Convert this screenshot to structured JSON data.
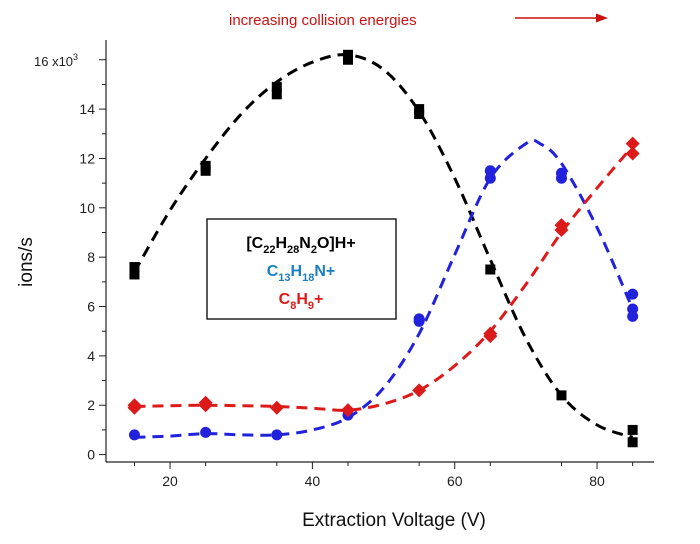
{
  "chart_data": {
    "type": "scatter",
    "title": "",
    "xlabel": "Extraction Voltage (V)",
    "ylabel": "ions/s",
    "xlim": [
      11,
      88
    ],
    "ylim": [
      -0.3,
      16.8
    ],
    "y_multiplier_label": "x10",
    "y_multiplier_exp": "3",
    "x_ticks": [
      20,
      40,
      60,
      80
    ],
    "y_ticks": [
      0,
      2,
      4,
      6,
      8,
      10,
      12,
      14,
      16
    ],
    "y_tick_labels": [
      "0",
      "2",
      "4",
      "6",
      "8",
      "10",
      "12",
      "14",
      "16"
    ],
    "grid": false,
    "annotation": {
      "text": "increasing collision energies",
      "color": "#cc1111"
    },
    "legend": {
      "placement": "center-left",
      "entries": [
        {
          "parts": [
            [
              "[C",
              ""
            ],
            [
              "22",
              "sub"
            ],
            [
              "H",
              ""
            ],
            [
              "28",
              "sub"
            ],
            [
              "N",
              ""
            ],
            [
              "2",
              "sub"
            ],
            [
              "O]H+",
              ""
            ]
          ],
          "color": "#000000"
        },
        {
          "parts": [
            [
              "C",
              ""
            ],
            [
              "13",
              "sub"
            ],
            [
              "H",
              ""
            ],
            [
              "18",
              "sub"
            ],
            [
              "N+",
              ""
            ]
          ],
          "color": "#1a7fc1"
        },
        {
          "parts": [
            [
              "C",
              ""
            ],
            [
              "8",
              "sub"
            ],
            [
              "H",
              ""
            ],
            [
              "9",
              "sub"
            ],
            [
              "+",
              ""
            ]
          ],
          "color": "#dd1a1a"
        }
      ]
    },
    "series": [
      {
        "marker": "square",
        "color": "#000000",
        "points": [
          [
            15,
            7.3
          ],
          [
            15,
            7.6
          ],
          [
            25,
            11.5
          ],
          [
            25,
            11.7
          ],
          [
            35,
            14.6
          ],
          [
            35,
            14.9
          ],
          [
            45,
            16.0
          ],
          [
            45,
            16.2
          ],
          [
            55,
            13.8
          ],
          [
            55,
            14.0
          ],
          [
            65,
            7.5
          ],
          [
            75,
            2.4
          ],
          [
            85,
            1.0
          ],
          [
            85,
            0.5
          ]
        ],
        "fit": [
          [
            15,
            7.4
          ],
          [
            20,
            9.9
          ],
          [
            25,
            12.0
          ],
          [
            30,
            13.8
          ],
          [
            35,
            15.1
          ],
          [
            40,
            15.9
          ],
          [
            45,
            16.2
          ],
          [
            50,
            15.6
          ],
          [
            55,
            13.9
          ],
          [
            60,
            11.2
          ],
          [
            65,
            7.9
          ],
          [
            70,
            4.7
          ],
          [
            75,
            2.4
          ],
          [
            80,
            1.2
          ],
          [
            85,
            0.7
          ]
        ]
      },
      {
        "marker": "circle",
        "color": "#2222dd",
        "points": [
          [
            15,
            0.8
          ],
          [
            25,
            0.9
          ],
          [
            35,
            0.8
          ],
          [
            45,
            1.6
          ],
          [
            55,
            5.5
          ],
          [
            55,
            5.4
          ],
          [
            65,
            11.2
          ],
          [
            65,
            11.5
          ],
          [
            75,
            11.2
          ],
          [
            75,
            11.4
          ],
          [
            85,
            6.5
          ],
          [
            85,
            5.6
          ],
          [
            85,
            5.9
          ]
        ],
        "fit": [
          [
            15,
            0.7
          ],
          [
            20,
            0.75
          ],
          [
            25,
            0.85
          ],
          [
            30,
            0.8
          ],
          [
            35,
            0.8
          ],
          [
            40,
            1.0
          ],
          [
            45,
            1.5
          ],
          [
            50,
            2.7
          ],
          [
            55,
            4.9
          ],
          [
            60,
            8.1
          ],
          [
            65,
            11.2
          ],
          [
            70,
            12.6
          ],
          [
            72,
            12.6
          ],
          [
            75,
            11.8
          ],
          [
            80,
            9.2
          ],
          [
            85,
            5.9
          ]
        ]
      },
      {
        "marker": "diamond",
        "color": "#dd1a1a",
        "points": [
          [
            15,
            1.9
          ],
          [
            15,
            2.0
          ],
          [
            25,
            2.0
          ],
          [
            25,
            2.1
          ],
          [
            35,
            1.9
          ],
          [
            45,
            1.8
          ],
          [
            55,
            2.6
          ],
          [
            65,
            4.8
          ],
          [
            65,
            4.9
          ],
          [
            75,
            9.3
          ],
          [
            75,
            9.1
          ],
          [
            85,
            12.6
          ],
          [
            85,
            12.2
          ]
        ],
        "fit": [
          [
            15,
            1.95
          ],
          [
            20,
            1.98
          ],
          [
            25,
            2.0
          ],
          [
            30,
            1.98
          ],
          [
            35,
            1.95
          ],
          [
            40,
            1.88
          ],
          [
            45,
            1.8
          ],
          [
            50,
            2.05
          ],
          [
            55,
            2.6
          ],
          [
            60,
            3.6
          ],
          [
            65,
            5.0
          ],
          [
            70,
            6.9
          ],
          [
            75,
            9.0
          ],
          [
            80,
            10.8
          ],
          [
            85,
            12.5
          ]
        ]
      }
    ]
  }
}
